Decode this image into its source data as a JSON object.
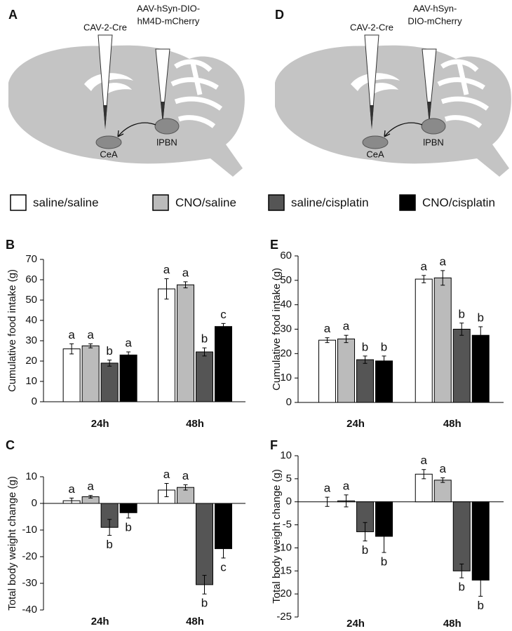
{
  "figure": {
    "diagrams": [
      {
        "panel": "A",
        "injection_1": "CAV-2-Cre",
        "injection_2": [
          "AAV-hSyn-DIO-",
          "hM4D-mCherry"
        ],
        "region_1": "CeA",
        "region_2": "lPBN"
      },
      {
        "panel": "D",
        "injection_1": "CAV-2-Cre",
        "injection_2": [
          "AAV-hSyn-",
          "DIO-mCherry"
        ],
        "region_1": "CeA",
        "region_2": "lPBN"
      }
    ]
  },
  "chart_data": [
    {
      "type": "bar",
      "panel": "B",
      "ylabel": "Cumulative food intake (g)",
      "categories": [
        "24h",
        "48h"
      ],
      "ylim": [
        0,
        70
      ],
      "yticks": [
        0,
        10,
        20,
        30,
        40,
        50,
        60,
        70
      ],
      "series": [
        {
          "name": "saline/saline",
          "color": "#ffffff",
          "values": [
            26,
            55.5
          ],
          "errors": [
            2.5,
            5
          ],
          "letters": [
            "a",
            "a"
          ]
        },
        {
          "name": "CNO/saline",
          "color": "#bbbbbb",
          "values": [
            27.5,
            57.5
          ],
          "errors": [
            1,
            1.5
          ],
          "letters": [
            "a",
            "a"
          ]
        },
        {
          "name": "saline/cisplatin",
          "color": "#555555",
          "values": [
            19,
            24.5
          ],
          "errors": [
            1.5,
            2
          ],
          "letters": [
            "b",
            "b"
          ]
        },
        {
          "name": "CNO/cisplatin",
          "color": "#000000",
          "values": [
            23,
            37
          ],
          "errors": [
            1.5,
            1.5
          ],
          "letters": [
            "a",
            "c"
          ]
        }
      ]
    },
    {
      "type": "bar",
      "panel": "C",
      "ylabel": "Total body weight change (g)",
      "categories": [
        "24h",
        "48h"
      ],
      "ylim": [
        -40,
        10
      ],
      "yticks": [
        -40,
        -30,
        -20,
        -10,
        0,
        10
      ],
      "series": [
        {
          "name": "saline/saline",
          "color": "#ffffff",
          "values": [
            1,
            5
          ],
          "errors": [
            1,
            2.5
          ],
          "letters": [
            "a",
            "a"
          ]
        },
        {
          "name": "CNO/saline",
          "color": "#bbbbbb",
          "values": [
            2.5,
            6
          ],
          "errors": [
            0.5,
            1
          ],
          "letters": [
            "a",
            "a"
          ]
        },
        {
          "name": "saline/cisplatin",
          "color": "#555555",
          "values": [
            -9,
            -30.5
          ],
          "errors": [
            3,
            3.5
          ],
          "letters": [
            "b",
            "b"
          ]
        },
        {
          "name": "CNO/cisplatin",
          "color": "#000000",
          "values": [
            -3.5,
            -17
          ],
          "errors": [
            2,
            3.5
          ],
          "letters": [
            "b",
            "c"
          ]
        }
      ]
    },
    {
      "type": "bar",
      "panel": "E",
      "ylabel": "Cumulative food intake (g)",
      "categories": [
        "24h",
        "48h"
      ],
      "ylim": [
        0,
        60
      ],
      "yticks": [
        0,
        10,
        20,
        30,
        40,
        50,
        60
      ],
      "series": [
        {
          "name": "saline/saline",
          "color": "#ffffff",
          "values": [
            25.5,
            50.5
          ],
          "errors": [
            1,
            1.5
          ],
          "letters": [
            "a",
            "a"
          ]
        },
        {
          "name": "CNO/saline",
          "color": "#bbbbbb",
          "values": [
            26,
            51
          ],
          "errors": [
            1.5,
            3
          ],
          "letters": [
            "a",
            "a"
          ]
        },
        {
          "name": "saline/cisplatin",
          "color": "#555555",
          "values": [
            17.5,
            30
          ],
          "errors": [
            1.5,
            2.5
          ],
          "letters": [
            "b",
            "b"
          ]
        },
        {
          "name": "CNO/cisplatin",
          "color": "#000000",
          "values": [
            17,
            27.5
          ],
          "errors": [
            2,
            3.5
          ],
          "letters": [
            "b",
            "b"
          ]
        }
      ]
    },
    {
      "type": "bar",
      "panel": "F",
      "ylabel": "Total body weight change (g)",
      "categories": [
        "24h",
        "48h"
      ],
      "ylim": [
        -25,
        10
      ],
      "yticks": [
        -25,
        -20,
        -15,
        -10,
        -5,
        0,
        5,
        10
      ],
      "series": [
        {
          "name": "saline/saline",
          "color": "#ffffff",
          "values": [
            0,
            6
          ],
          "errors": [
            1,
            1
          ],
          "letters": [
            "a",
            "a"
          ]
        },
        {
          "name": "CNO/saline",
          "color": "#bbbbbb",
          "values": [
            0.2,
            4.7
          ],
          "errors": [
            1.3,
            0.5
          ],
          "letters": [
            "a",
            "a"
          ]
        },
        {
          "name": "saline/cisplatin",
          "color": "#555555",
          "values": [
            -6.5,
            -15
          ],
          "errors": [
            2,
            1.5
          ],
          "letters": [
            "b",
            "b"
          ]
        },
        {
          "name": "CNO/cisplatin",
          "color": "#000000",
          "values": [
            -7.5,
            -17
          ],
          "errors": [
            3.5,
            3.5
          ],
          "letters": [
            "b",
            "b"
          ]
        }
      ]
    }
  ]
}
